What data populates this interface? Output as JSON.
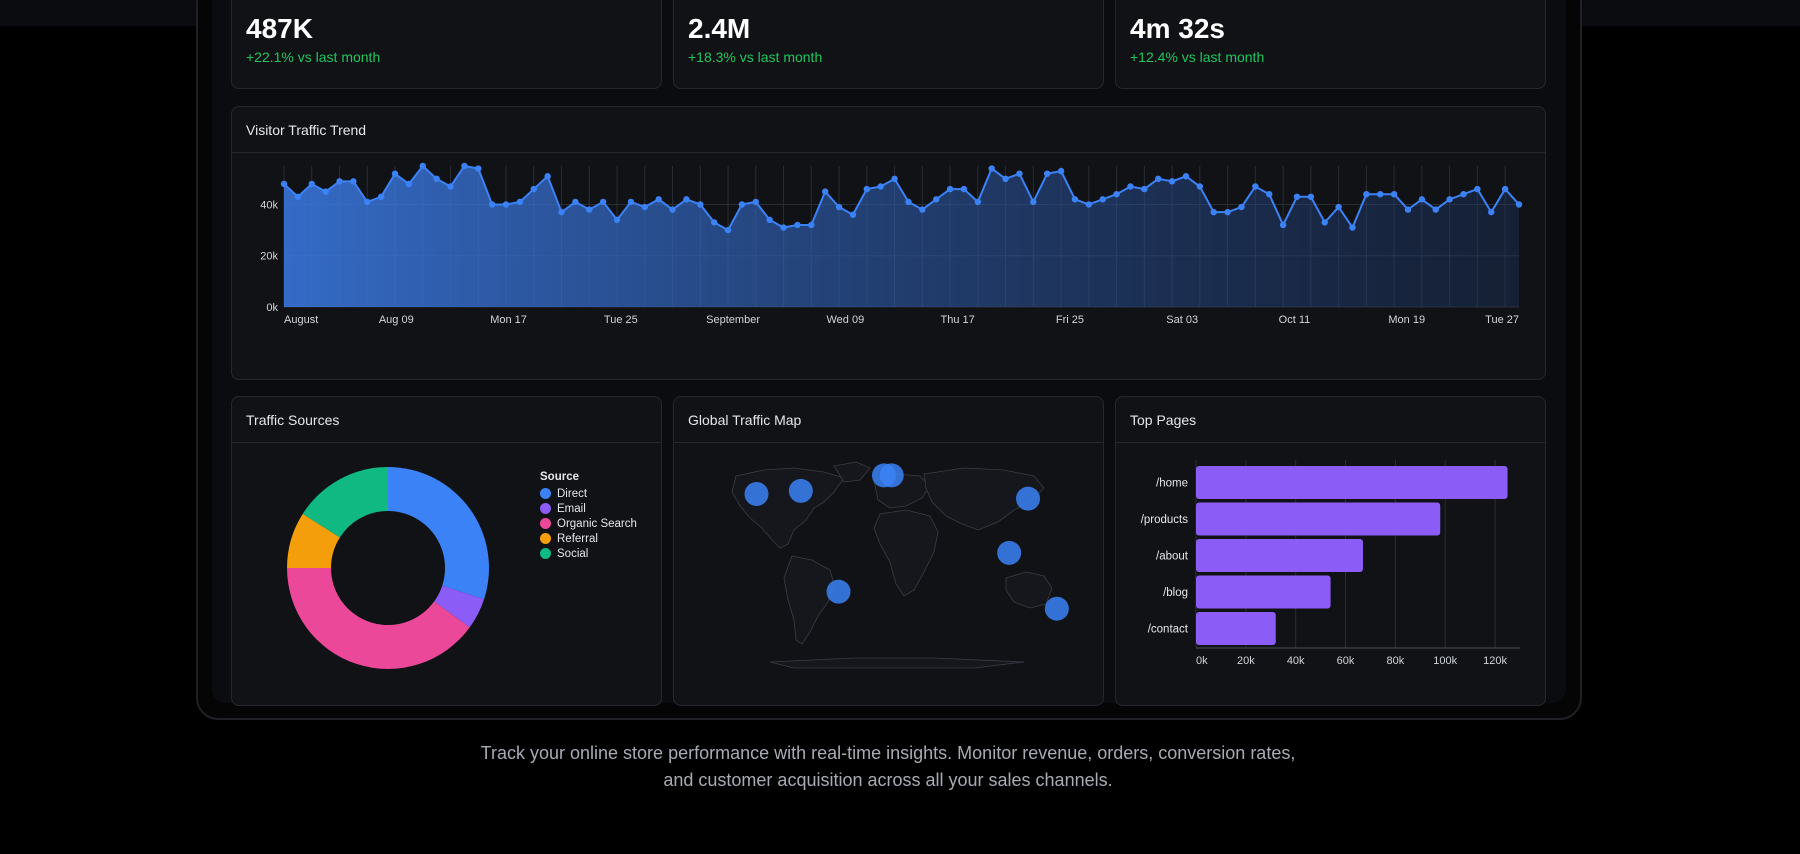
{
  "stats": [
    {
      "value": "487K",
      "change": "+22.1% vs last month"
    },
    {
      "value": "2.4M",
      "change": "+18.3% vs last month"
    },
    {
      "value": "4m 32s",
      "change": "+12.4% vs last month"
    }
  ],
  "traffic_trend": {
    "title": "Visitor Traffic Trend",
    "x_labels": [
      "August",
      "Aug 09",
      "Mon 17",
      "Tue 25",
      "September",
      "Wed 09",
      "Thu 17",
      "Fri 25",
      "Sat 03",
      "Oct 11",
      "Mon 19",
      "Tue 27"
    ],
    "y_labels": [
      "0k",
      "20k",
      "40k"
    ]
  },
  "traffic_sources": {
    "title": "Traffic Sources",
    "legend_title": "Source"
  },
  "global_map": {
    "title": "Global Traffic Map"
  },
  "top_pages": {
    "title": "Top Pages"
  },
  "footer": {
    "line1": "Track your online store performance with real-time insights. Monitor revenue, orders, conversion rates,",
    "line2": "and customer acquisition across all your sales channels."
  },
  "colors": {
    "accent": "#3b82f6",
    "positive": "#22c55e",
    "bar": "#8b5cf6",
    "direct": "#3b82f6",
    "email": "#8b5cf6",
    "organic": "#ec4899",
    "referral": "#f59e0b",
    "social": "#10b981"
  },
  "chart_data": [
    {
      "type": "area",
      "title": "Visitor Traffic Trend",
      "x_start": "2024-08-01",
      "x_end": "2024-10-28",
      "x_tick_labels": [
        "August",
        "Aug 09",
        "Mon 17",
        "Tue 25",
        "September",
        "Wed 09",
        "Thu 17",
        "Fri 25",
        "Sat 03",
        "Oct 11",
        "Mon 19",
        "Tue 27"
      ],
      "ylim": [
        0,
        55000
      ],
      "y_ticks": [
        "0k",
        "20k",
        "40k"
      ],
      "values": [
        48000,
        43000,
        48000,
        45000,
        49000,
        49000,
        41000,
        43000,
        52000,
        48000,
        55000,
        50000,
        47000,
        55000,
        54000,
        40000,
        40000,
        41000,
        46000,
        51000,
        37000,
        41000,
        38000,
        41000,
        34000,
        41000,
        39000,
        42000,
        38000,
        42000,
        40000,
        33000,
        30000,
        40000,
        41000,
        34000,
        31000,
        32000,
        32000,
        45000,
        39000,
        36000,
        46000,
        47000,
        50000,
        41000,
        38000,
        42000,
        46000,
        46000,
        41000,
        54000,
        50000,
        52000,
        41000,
        52000,
        53000,
        42000,
        40000,
        42000,
        44000,
        47000,
        46000,
        50000,
        49000,
        51000,
        47000,
        37000,
        37000,
        39000,
        47000,
        44000,
        32000,
        43000,
        43000,
        33000,
        39000,
        31000,
        44000,
        44000,
        44000,
        38000,
        42000,
        38000,
        42000,
        44000,
        46000,
        37000,
        46000,
        40000
      ],
      "grid": true
    },
    {
      "type": "pie",
      "title": "Traffic Sources",
      "legend_title": "Source",
      "labels": [
        "Direct",
        "Email",
        "Organic Search",
        "Referral",
        "Social"
      ],
      "values": [
        30,
        5,
        40,
        9,
        16
      ],
      "donut": true,
      "legend": "right"
    },
    {
      "type": "bar",
      "orientation": "horizontal",
      "title": "Top Pages",
      "categories": [
        "/home",
        "/products",
        "/about",
        "/blog",
        "/contact"
      ],
      "values": [
        125000,
        98000,
        67000,
        54000,
        32000
      ],
      "x_ticks": [
        "0k",
        "20k",
        "40k",
        "60k",
        "80k",
        "100k",
        "120k"
      ],
      "xlim": [
        0,
        130000
      ],
      "grid": true
    }
  ],
  "map_points": [
    {
      "lat": 40,
      "lon": -120
    },
    {
      "lat": 42,
      "lon": -80
    },
    {
      "lat": 52,
      "lon": -5
    },
    {
      "lat": 52,
      "lon": 2
    },
    {
      "lat": 37,
      "lon": 125
    },
    {
      "lat": 2,
      "lon": 108
    },
    {
      "lat": -23,
      "lon": -46
    },
    {
      "lat": -34,
      "lon": 151
    }
  ]
}
